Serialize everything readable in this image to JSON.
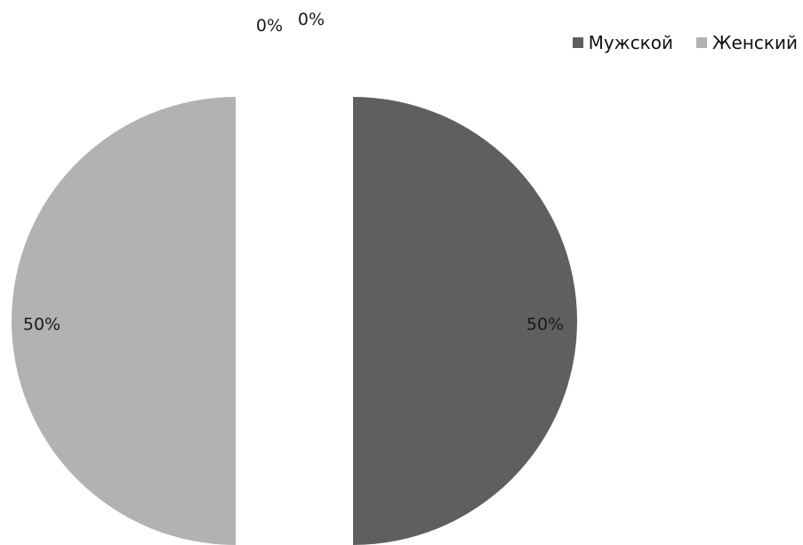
{
  "chart_data": {
    "type": "pie",
    "series": [
      {
        "categories": [
          "Мужской",
          "Женский",
          "",
          ""
        ],
        "values": [
          50,
          50,
          0,
          0
        ],
        "labels": [
          "50%",
          "50%",
          "0%",
          "0%"
        ],
        "colors": [
          "#5f5f5f",
          "#b2b2b2",
          "#ffffff",
          "#ffffff"
        ]
      }
    ],
    "legend": {
      "placement": "top-right",
      "entries": [
        {
          "name": "Мужской",
          "color": "#5f5f5f"
        },
        {
          "name": "Женский",
          "color": "#b2b2b2"
        }
      ]
    }
  }
}
